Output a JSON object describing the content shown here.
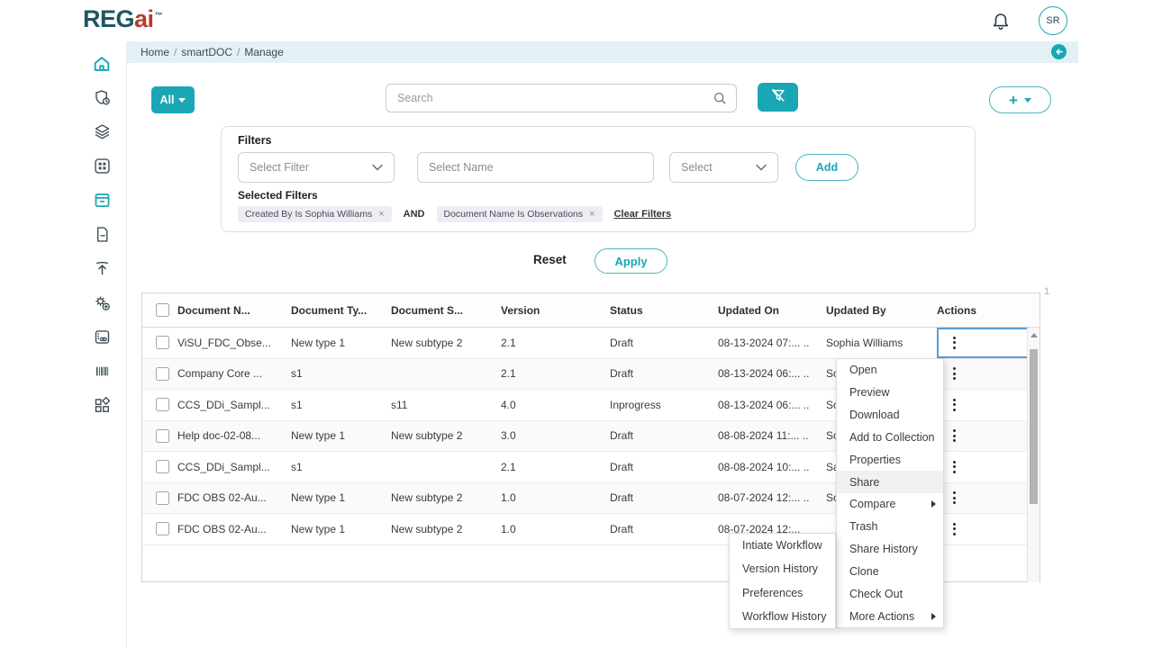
{
  "colors": {
    "accent_teal": "#1AA7B5",
    "logo_teal": "#1F5661",
    "logo_red": "#B23E2B",
    "breadcrumb_bar": "#E2F1F4",
    "selection_blue": "#5B9BD5",
    "chip_bg": "#EDEDF3"
  },
  "header": {
    "logo_part1": "REG",
    "logo_part2": "ai",
    "logo_tm": "™",
    "avatar_initials": "SR"
  },
  "breadcrumb": {
    "items": [
      "Home",
      "smartDOC",
      "Manage"
    ],
    "separator": "/"
  },
  "sidebar": {
    "items": [
      {
        "name": "home",
        "active": true
      },
      {
        "name": "shield-badge",
        "active": false
      },
      {
        "name": "layers",
        "active": false
      },
      {
        "name": "apps-grid",
        "active": false
      },
      {
        "name": "archive",
        "active": true
      },
      {
        "name": "document",
        "active": false
      },
      {
        "name": "upload",
        "active": false
      },
      {
        "name": "settings-gear",
        "active": false
      },
      {
        "name": "card-link",
        "active": false
      },
      {
        "name": "barcode",
        "active": false
      },
      {
        "name": "widgets",
        "active": false
      }
    ]
  },
  "toolbar": {
    "scope_button": "All",
    "search_placeholder": "Search",
    "add_button": "+"
  },
  "filters": {
    "title": "Filters",
    "select_filter_placeholder": "Select Filter",
    "select_name_placeholder": "Select Name",
    "select_placeholder": "Select",
    "add_button": "Add",
    "selected_label": "Selected Filters",
    "chips": [
      "Created By Is Sophia Williams",
      "Document Name Is  Observations"
    ],
    "chip_remove": "×",
    "operator": "AND",
    "clear_link": "Clear Filters",
    "reset_button": "Reset",
    "apply_button": "Apply"
  },
  "table": {
    "columns": [
      "Document N...",
      "Document Ty...",
      "Document S...",
      "Version",
      "Status",
      "Updated On",
      "Updated By",
      "Actions"
    ],
    "page_indicator": "1",
    "rows": [
      {
        "name": "ViSU_FDC_Obse...",
        "type": "New type 1",
        "subtype": "New subtype 2",
        "version": "2.1",
        "status": "Draft",
        "updated_on": "08-13-2024 07:... ..",
        "updated_by": "Sophia Williams",
        "actions_selected": true
      },
      {
        "name": "Company Core ...",
        "type": "s1",
        "subtype": "",
        "version": "2.1",
        "status": "Draft",
        "updated_on": "08-13-2024 06:... ..",
        "updated_by": "So"
      },
      {
        "name": "CCS_DDi_Sampl...",
        "type": "s1",
        "subtype": "s11",
        "version": "4.0",
        "status": "Inprogress",
        "updated_on": "08-13-2024 06:... ..",
        "updated_by": "So"
      },
      {
        "name": "Help doc-02-08...",
        "type": "New type 1",
        "subtype": "New subtype 2",
        "version": "3.0",
        "status": "Draft",
        "updated_on": "08-08-2024 11:... ..",
        "updated_by": "So"
      },
      {
        "name": "CCS_DDi_Sampl...",
        "type": "s1",
        "subtype": "",
        "version": "2.1",
        "status": "Draft",
        "updated_on": "08-08-2024 10:... ..",
        "updated_by": "Sa"
      },
      {
        "name": "FDC OBS 02-Au...",
        "type": "New type 1",
        "subtype": "New subtype 2",
        "version": "1.0",
        "status": "Draft",
        "updated_on": "08-07-2024 12:... ..",
        "updated_by": "So"
      },
      {
        "name": "FDC OBS 02-Au...",
        "type": "New type 1",
        "subtype": "New subtype 2",
        "version": "1.0",
        "status": "Draft",
        "updated_on": "08-07-2024 12:...",
        "updated_by": ""
      }
    ]
  },
  "context_menu": {
    "items": [
      {
        "label": "Open"
      },
      {
        "label": "Preview"
      },
      {
        "label": "Download"
      },
      {
        "label": "Add to Collection"
      },
      {
        "label": "Properties"
      },
      {
        "label": "Share",
        "highlighted": true
      },
      {
        "label": "Compare",
        "has_submenu": true
      },
      {
        "label": "Trash"
      },
      {
        "label": "Share History"
      },
      {
        "label": "Clone"
      },
      {
        "label": "Check Out"
      },
      {
        "label": "More Actions",
        "has_submenu": true
      }
    ]
  },
  "workflow_menu": {
    "items": [
      "Intiate Workflow",
      "Version History",
      "Preferences",
      "Workflow History"
    ]
  }
}
